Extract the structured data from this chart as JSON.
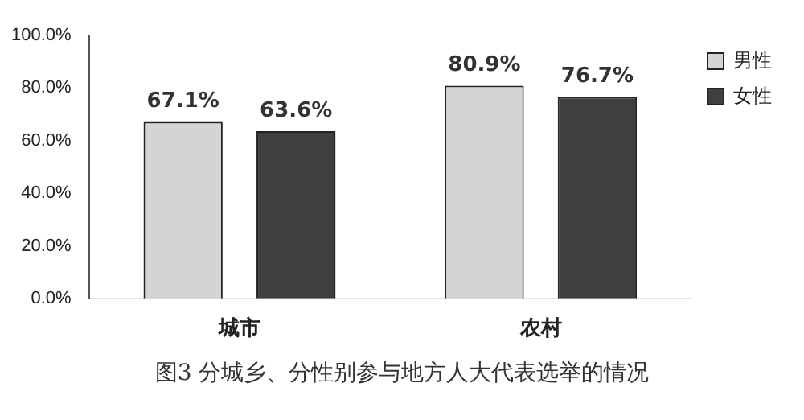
{
  "chart_data": {
    "type": "bar",
    "categories": [
      "城市",
      "农村"
    ],
    "series": [
      {
        "name": "男性",
        "color": "#d4d4d4",
        "values": [
          67.1,
          80.9
        ]
      },
      {
        "name": "女性",
        "color": "#3f3f3f",
        "values": [
          63.6,
          76.7
        ]
      }
    ],
    "ylim": [
      0,
      100
    ],
    "yticks": [
      {
        "value": 0,
        "label": "0.0%"
      },
      {
        "value": 20,
        "label": "20.0%"
      },
      {
        "value": 40,
        "label": "40.0%"
      },
      {
        "value": 60,
        "label": "60.0%"
      },
      {
        "value": 80,
        "label": "80.0%"
      },
      {
        "value": 100,
        "label": "100.0%"
      }
    ],
    "value_labels": [
      [
        "67.1%",
        "80.9%"
      ],
      [
        "63.6%",
        "76.7%"
      ]
    ],
    "legend": "top right",
    "grid": false,
    "annotations": [
      "图3  分城乡、分性别参与地方人大代表选举的情况"
    ]
  }
}
